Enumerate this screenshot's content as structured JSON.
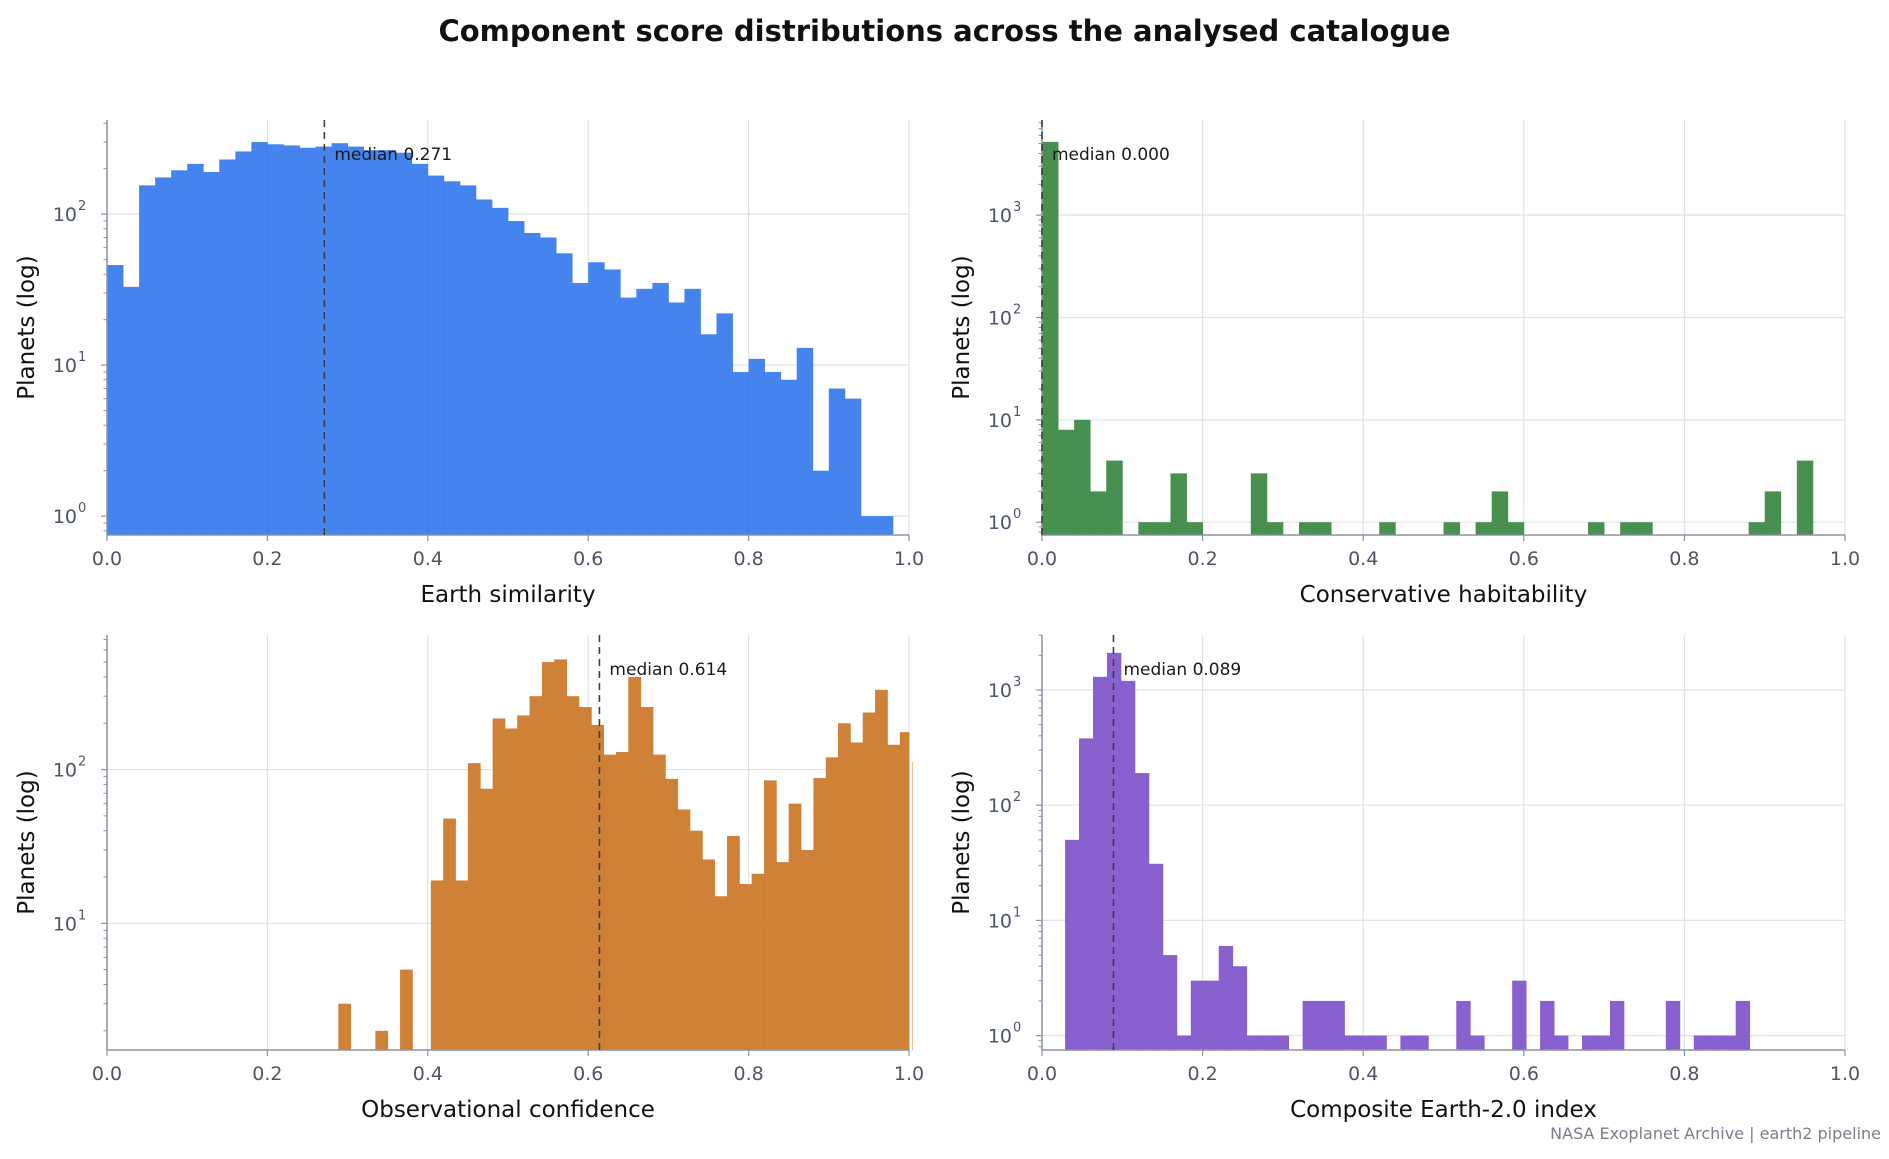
{
  "figure": {
    "title": "Component score distributions across the analysed catalogue",
    "source_note": "NASA Exoplanet Archive | earth2 pipeline"
  },
  "chart_data": [
    {
      "type": "bar",
      "xlabel": "Earth similarity",
      "ylabel": "Planets (log)",
      "yscale": "log",
      "xlim": [
        0,
        1
      ],
      "ylim": [
        0.75,
        420
      ],
      "color": "#3b7ded",
      "grid": true,
      "median_label": "median 0.271",
      "median": 0.271,
      "xticks": [
        "0.0",
        "0.2",
        "0.4",
        "0.6",
        "0.8",
        "1.0"
      ],
      "yticks": [
        {
          "label": "10",
          "exp": "0",
          "value": 1
        },
        {
          "label": "10",
          "exp": "1",
          "value": 10
        },
        {
          "label": "10",
          "exp": "2",
          "value": 100
        }
      ],
      "bins": {
        "start": 0.0,
        "width": 0.02
      },
      "values": [
        46,
        33,
        155,
        175,
        195,
        215,
        190,
        230,
        260,
        300,
        290,
        285,
        275,
        280,
        295,
        280,
        265,
        265,
        255,
        215,
        180,
        165,
        155,
        125,
        110,
        90,
        75,
        70,
        55,
        35,
        48,
        43,
        28,
        32,
        35,
        26,
        32,
        16,
        22,
        9,
        11,
        9,
        8,
        13,
        2,
        7,
        6,
        1,
        1
      ]
    },
    {
      "type": "bar",
      "xlabel": "Conservative habitability",
      "ylabel": "Planets (log)",
      "yscale": "log",
      "xlim": [
        0,
        1
      ],
      "ylim": [
        0.75,
        8500
      ],
      "color": "#3e8a47",
      "grid": true,
      "median_label": "median 0.000",
      "median": 0.0,
      "xticks": [
        "0.0",
        "0.2",
        "0.4",
        "0.6",
        "0.8",
        "1.0"
      ],
      "yticks": [
        {
          "label": "10",
          "exp": "0",
          "value": 1
        },
        {
          "label": "10",
          "exp": "1",
          "value": 10
        },
        {
          "label": "10",
          "exp": "2",
          "value": 100
        },
        {
          "label": "10",
          "exp": "3",
          "value": 1000
        }
      ],
      "bins": {
        "start": 0.0,
        "width": 0.02
      },
      "values": [
        5200,
        8,
        10,
        2,
        4,
        0,
        0,
        1,
        1,
        3,
        1,
        0,
        0,
        3,
        1,
        0,
        1,
        1,
        0,
        0,
        0,
        1,
        0,
        0,
        0,
        1,
        0,
        1,
        2,
        1,
        0,
        0,
        0,
        0,
        0,
        0,
        0,
        1,
        0,
        0,
        0,
        0,
        0,
        0,
        0,
        0,
        0,
        0,
        0,
        0,
        0,
        0,
        0,
        0,
        0,
        0,
        0,
        0,
        0,
        0,
        0,
        0,
        0,
        0,
        0,
        0,
        0,
        0,
        0,
        0,
        0,
        0,
        0,
        0,
        0,
        0,
        0,
        0,
        0,
        0
      ],
      "values_note_unused": "",
      "bins_values": [
        [
          0.0,
          5200
        ],
        [
          0.02,
          8
        ],
        [
          0.04,
          10
        ],
        [
          0.06,
          2
        ],
        [
          0.08,
          4
        ],
        [
          0.12,
          1
        ],
        [
          0.14,
          1
        ],
        [
          0.16,
          3
        ],
        [
          0.18,
          1
        ],
        [
          0.26,
          3
        ],
        [
          0.28,
          1
        ],
        [
          0.32,
          1
        ],
        [
          0.34,
          1
        ],
        [
          0.42,
          1
        ],
        [
          0.5,
          1
        ],
        [
          0.54,
          1
        ],
        [
          0.56,
          2
        ],
        [
          0.58,
          1
        ],
        [
          0.68,
          1
        ],
        [
          0.72,
          1
        ],
        [
          0.74,
          1
        ],
        [
          0.88,
          1
        ],
        [
          0.9,
          2
        ],
        [
          0.94,
          4
        ]
      ]
    },
    {
      "type": "bar",
      "xlabel": "Observational confidence",
      "ylabel": "Planets (log)",
      "yscale": "log",
      "xlim": [
        0,
        1
      ],
      "ylim": [
        1.5,
        750
      ],
      "color": "#cb7a2c",
      "grid": true,
      "median_label": "median 0.614",
      "median": 0.614,
      "xticks": [
        "0.0",
        "0.2",
        "0.4",
        "0.6",
        "0.8",
        "1.0"
      ],
      "yticks": [
        {
          "label": "10",
          "exp": "1",
          "value": 10
        },
        {
          "label": "10",
          "exp": "2",
          "value": 100
        }
      ],
      "bins": {
        "start": 0.0,
        "width": 0.01538
      },
      "bins_values": [
        [
          0.2884,
          3
        ],
        [
          0.3346,
          2
        ],
        [
          0.3654,
          5
        ],
        [
          0.4038,
          19
        ],
        [
          0.4192,
          48
        ],
        [
          0.4346,
          19
        ],
        [
          0.45,
          110
        ],
        [
          0.4654,
          75
        ],
        [
          0.4808,
          215
        ],
        [
          0.4962,
          185
        ],
        [
          0.5115,
          225
        ],
        [
          0.5269,
          300
        ],
        [
          0.5423,
          500
        ],
        [
          0.5577,
          520
        ],
        [
          0.5731,
          300
        ],
        [
          0.5885,
          255
        ],
        [
          0.6038,
          195
        ],
        [
          0.6192,
          125
        ],
        [
          0.6346,
          130
        ],
        [
          0.65,
          400
        ],
        [
          0.6654,
          255
        ],
        [
          0.6808,
          125
        ],
        [
          0.6962,
          87
        ],
        [
          0.7115,
          55
        ],
        [
          0.7269,
          40
        ],
        [
          0.7423,
          26
        ],
        [
          0.7577,
          15
        ],
        [
          0.7731,
          37
        ],
        [
          0.7885,
          18
        ],
        [
          0.8038,
          21
        ],
        [
          0.8192,
          85
        ],
        [
          0.8346,
          25
        ],
        [
          0.85,
          60
        ],
        [
          0.8654,
          30
        ],
        [
          0.8808,
          88
        ],
        [
          0.8962,
          120
        ],
        [
          0.9115,
          200
        ],
        [
          0.9269,
          150
        ],
        [
          0.9423,
          235
        ],
        [
          0.9577,
          330
        ],
        [
          0.9731,
          145
        ],
        [
          0.9885,
          175
        ],
        [
          1.0038,
          112
        ]
      ],
      "values": []
    },
    {
      "type": "bar",
      "xlabel": "Composite Earth-2.0 index",
      "ylabel": "Planets (log)",
      "yscale": "log",
      "xlim": [
        0,
        1
      ],
      "ylim": [
        0.75,
        3000
      ],
      "color": "#8258cb",
      "grid": true,
      "median_label": "median 0.089",
      "median": 0.089,
      "xticks": [
        "0.0",
        "0.2",
        "0.4",
        "0.6",
        "0.8",
        "1.0"
      ],
      "yticks": [
        {
          "label": "10",
          "exp": "0",
          "value": 1
        },
        {
          "label": "10",
          "exp": "1",
          "value": 10
        },
        {
          "label": "10",
          "exp": "2",
          "value": 100
        },
        {
          "label": "10",
          "exp": "3",
          "value": 1000
        }
      ],
      "bins": {
        "start": 0.0,
        "width": 0.0174
      },
      "bins_values": [
        [
          0.0287,
          50
        ],
        [
          0.0461,
          380
        ],
        [
          0.0635,
          1300
        ],
        [
          0.0809,
          2100
        ],
        [
          0.0983,
          1200
        ],
        [
          0.1157,
          190
        ],
        [
          0.1331,
          31
        ],
        [
          0.1505,
          5
        ],
        [
          0.1679,
          1
        ],
        [
          0.1853,
          3
        ],
        [
          0.2027,
          3
        ],
        [
          0.2201,
          6
        ],
        [
          0.2375,
          4
        ],
        [
          0.2549,
          1
        ],
        [
          0.2723,
          1
        ],
        [
          0.2897,
          1
        ],
        [
          0.3245,
          2
        ],
        [
          0.3419,
          2
        ],
        [
          0.3593,
          2
        ],
        [
          0.3767,
          1
        ],
        [
          0.3941,
          1
        ],
        [
          0.4115,
          1
        ],
        [
          0.4463,
          1
        ],
        [
          0.4637,
          1
        ],
        [
          0.5159,
          2
        ],
        [
          0.5333,
          1
        ],
        [
          0.5855,
          3
        ],
        [
          0.6203,
          2
        ],
        [
          0.6377,
          1
        ],
        [
          0.6725,
          1
        ],
        [
          0.6899,
          1
        ],
        [
          0.7073,
          2
        ],
        [
          0.7769,
          2
        ],
        [
          0.8117,
          1
        ],
        [
          0.8291,
          1
        ],
        [
          0.8465,
          1
        ],
        [
          0.8639,
          2
        ]
      ],
      "values": []
    }
  ]
}
